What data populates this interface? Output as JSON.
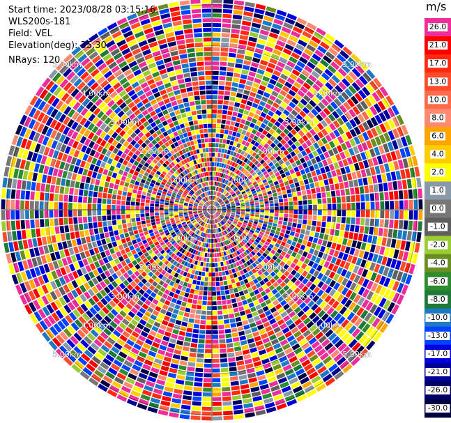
{
  "info": {
    "start_time": "Start time: 2023/08/28 03:15:16",
    "station": "WLS200s-181",
    "field": "Field: VEL",
    "elevation": "Elevation(deg): 35.30",
    "nrays": "NRays: 120"
  },
  "colorbar": {
    "unit": "m/s",
    "segments": [
      {
        "label": "26.0",
        "color": "#ee2c9a"
      },
      {
        "label": "21.0",
        "color": "#ff0000"
      },
      {
        "label": "17.0",
        "color": "#ff2a0f"
      },
      {
        "label": "13.0",
        "color": "#ff4b2b"
      },
      {
        "label": "10.0",
        "color": "#ff6a4a"
      },
      {
        "label": "8.0",
        "color": "#ff8a70"
      },
      {
        "label": "6.0",
        "color": "#ffa500"
      },
      {
        "label": "4.0",
        "color": "#ffcc00"
      },
      {
        "label": "2.0",
        "color": "#ffff00"
      },
      {
        "label": "1.0",
        "color": "#8899aa"
      },
      {
        "label": "0.0",
        "color": "#777777"
      },
      {
        "label": "-1.0",
        "color": "#5f5f5f"
      },
      {
        "label": "-2.0",
        "color": "#99cc33"
      },
      {
        "label": "-4.0",
        "color": "#6b8e23"
      },
      {
        "label": "-6.0",
        "color": "#2e8b2e"
      },
      {
        "label": "-8.0",
        "color": "#1f7a3a"
      },
      {
        "label": "-10.0",
        "color": "#1e78c8"
      },
      {
        "label": "-13.0",
        "color": "#0044ff"
      },
      {
        "label": "-17.0",
        "color": "#0000dd"
      },
      {
        "label": "-21.0",
        "color": "#000099"
      },
      {
        "label": "-26.0",
        "color": "#000066"
      },
      {
        "label": "-30.0",
        "color": "#000040"
      }
    ]
  },
  "chart_data": {
    "type": "heatmap",
    "title": "",
    "field": "VEL",
    "unit": "m/s",
    "projection": "polar PPI",
    "nrays": 120,
    "range_ring_labels": [
      "1.00km",
      "2.00km",
      "3.00km",
      "4.00km",
      "5.00km"
    ],
    "value_scale": [
      26.0,
      21.0,
      17.0,
      13.0,
      10.0,
      8.0,
      6.0,
      4.0,
      2.0,
      1.0,
      0.0,
      -1.0,
      -2.0,
      -4.0,
      -6.0,
      -8.0,
      -10.0,
      -13.0,
      -17.0,
      -21.0,
      -26.0,
      -30.0
    ],
    "data_appearance": "highly noisy velocity field spanning the full color scale at all ranges"
  }
}
